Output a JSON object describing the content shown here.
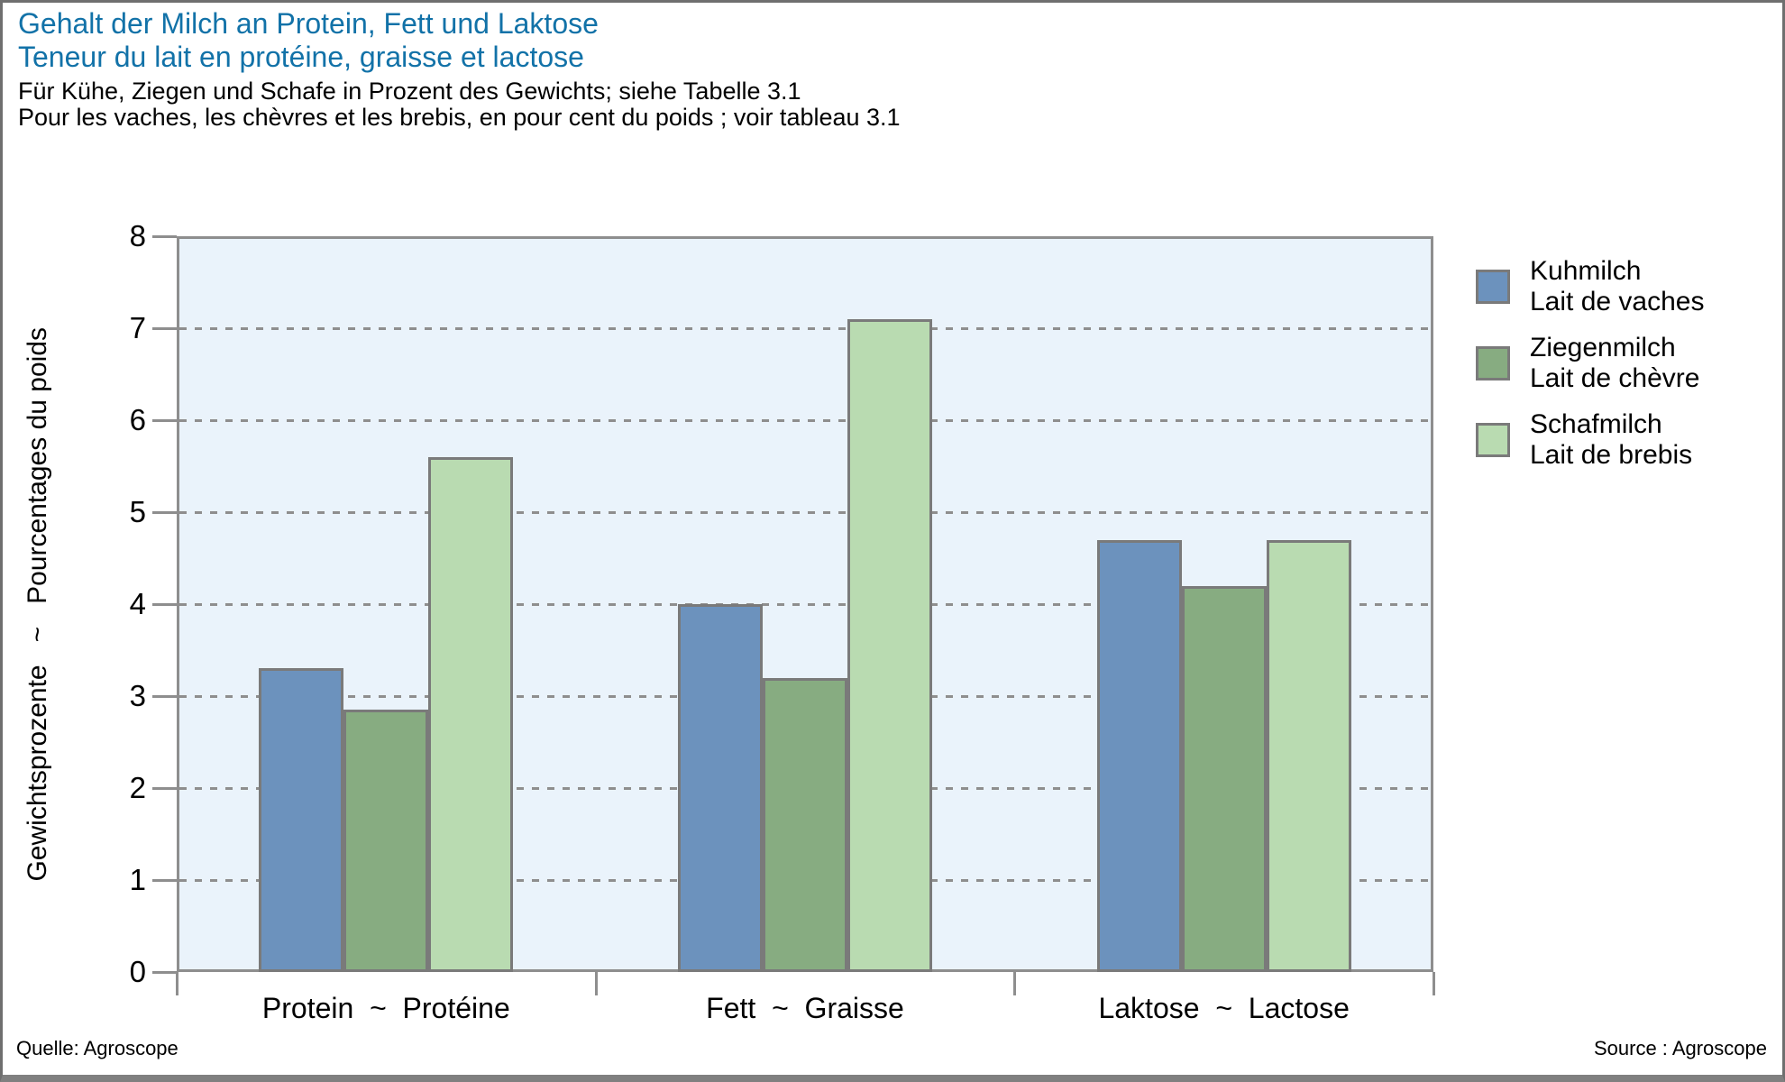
{
  "figure": {
    "title_de": "Gehalt der Milch an Protein, Fett und Laktose",
    "title_fr": "Teneur du lait en protéine, graisse et lactose",
    "subtitle_de": "Für Kühe, Ziegen und Schafe in Prozent des Gewichts; siehe Tabelle 3.1",
    "subtitle_fr": "Pour les vaches, les chèvres et les brebis, en pour cent du poids ; voir tableau 3.1",
    "source_left": "Quelle: Agroscope",
    "source_right": "Source : Agroscope"
  },
  "colors": {
    "title_blue": "#1272A8",
    "plot_background": "#EAF3FB",
    "axis_grey": "#8E8E8E",
    "gridline_grey": "#8E8E8E",
    "bar_border_grey": "#7A7A7A",
    "kuhmilch_blue": "#6C92BD",
    "ziegenmilch_green": "#87AC81",
    "schafmilch_lightgreen": "#B9DBB1"
  },
  "chart_data": {
    "type": "bar",
    "title": "",
    "categories": [
      "Protein  ~  Protéine",
      "Fett  ~  Graisse",
      "Laktose  ~  Lactose"
    ],
    "series": [
      {
        "name": "Kuhmilch / Lait de vaches",
        "label_de": "Kuhmilch",
        "label_fr": "Lait de vaches",
        "color": "#6C92BD",
        "values": [
          3.3,
          4.0,
          4.7
        ]
      },
      {
        "name": "Ziegenmilch / Lait de chèvre",
        "label_de": "Ziegenmilch",
        "label_fr": "Lait de chèvre",
        "color": "#87AC81",
        "values": [
          2.85,
          3.2,
          4.2
        ]
      },
      {
        "name": "Schafmilch / Lait de brebis",
        "label_de": "Schafmilch",
        "label_fr": "Lait de brebis",
        "color": "#B9DBB1",
        "values": [
          5.6,
          7.1,
          4.7
        ]
      }
    ],
    "xlabel": "",
    "ylabel": "Gewichtsprozente   ~   Pourcentages du poids",
    "ylim": [
      0,
      8
    ],
    "yticks": [
      0,
      1,
      2,
      3,
      4,
      5,
      6,
      7,
      8
    ],
    "grid": "horizontal dotted lines at integers 1-7",
    "legend_position": "right of plot"
  }
}
